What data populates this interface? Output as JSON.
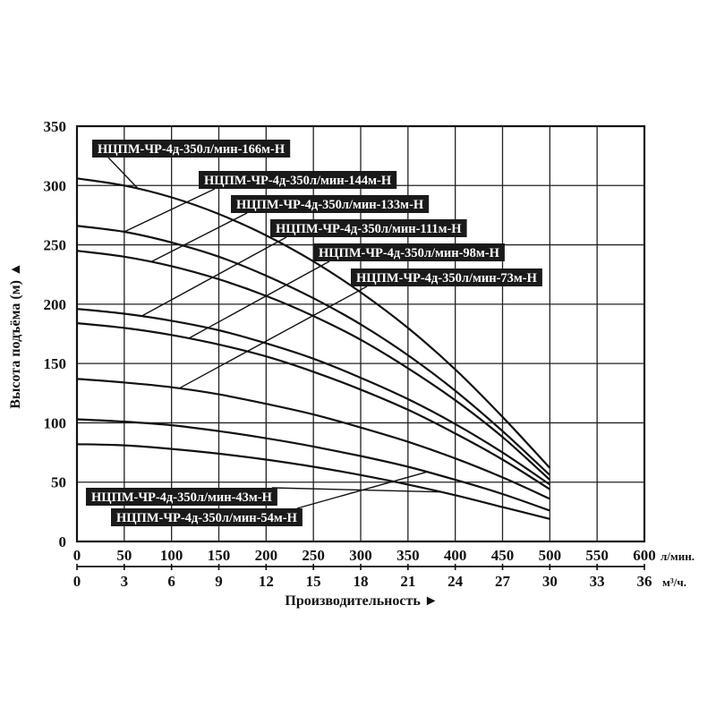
{
  "chart_data": {
    "type": "line",
    "title": "",
    "ylabel": "Высота подъёма (м) ▲",
    "xlabel": "Производительность ►",
    "x_unit_primary": "л/мин.",
    "x_unit_secondary": "м³/ч.",
    "xlim": [
      0,
      600
    ],
    "ylim": [
      0,
      350
    ],
    "grid": true,
    "y_ticks": [
      "0",
      "50",
      "100",
      "150",
      "200",
      "250",
      "300",
      "350"
    ],
    "x_ticks_primary": [
      "0",
      "50",
      "100",
      "150",
      "200",
      "250",
      "300",
      "350",
      "400",
      "450",
      "500",
      "550",
      "600"
    ],
    "x_ticks_secondary": [
      "0",
      "3",
      "6",
      "9",
      "12",
      "15",
      "18",
      "21",
      "24",
      "27",
      "30",
      "33",
      "36"
    ],
    "x": [
      0,
      50,
      100,
      150,
      200,
      250,
      300,
      350,
      400,
      450,
      500
    ],
    "series": [
      {
        "name": "НЦПМ-ЧР-4д-350л/мин-166м-Н",
        "values": [
          306,
          300,
          290,
          276,
          258,
          236,
          210,
          180,
          145,
          105,
          62
        ]
      },
      {
        "name": "НЦПМ-ЧР-4д-350л/мин-144м-Н",
        "values": [
          266,
          261,
          252,
          240,
          224,
          205,
          183,
          157,
          127,
          93,
          56
        ]
      },
      {
        "name": "НЦПМ-ЧР-4д-350л/мин-133м-Н",
        "values": [
          245,
          240,
          232,
          221,
          207,
          190,
          170,
          146,
          119,
          88,
          52
        ]
      },
      {
        "name": "НЦПМ-ЧР-4д-350л/мин-111м-Н",
        "values": [
          196,
          192,
          186,
          178,
          167,
          154,
          138,
          120,
          99,
          75,
          48
        ]
      },
      {
        "name": "НЦПМ-ЧР-4д-350л/мин-98м-Н",
        "values": [
          184,
          180,
          174,
          166,
          156,
          143,
          128,
          111,
          91,
          69,
          44
        ]
      },
      {
        "name": "НЦПМ-ЧР-4д-350л/мин-73м-Н",
        "values": [
          137,
          134,
          130,
          124,
          116,
          107,
          96,
          84,
          70,
          54,
          36
        ]
      },
      {
        "name": "НЦПМ-ЧР-4д-350л/мин-54м-Н",
        "values": [
          103,
          101,
          98,
          93,
          87,
          80,
          72,
          63,
          52,
          40,
          26
        ]
      },
      {
        "name": "НЦПМ-ЧР-4д-350л/мин-43м-Н",
        "values": [
          82,
          81,
          78,
          74,
          69,
          63,
          56,
          48,
          39,
          29,
          19
        ]
      }
    ]
  }
}
